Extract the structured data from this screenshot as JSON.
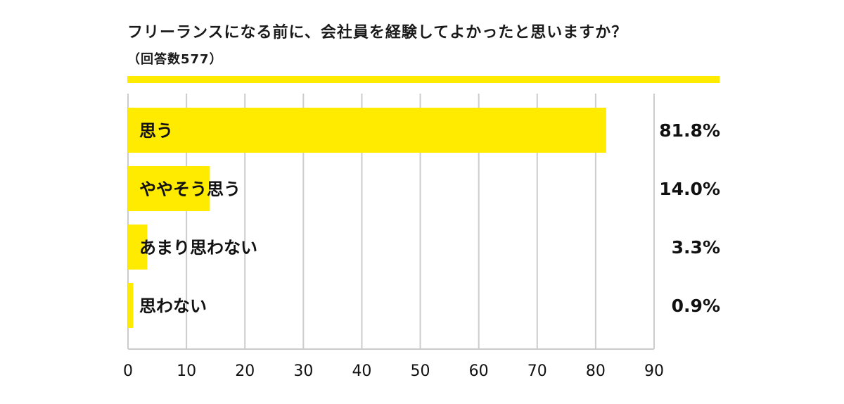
{
  "chart_data": {
    "type": "bar",
    "orientation": "horizontal",
    "title": "フリーランスになる前に、会社員を経験してよかったと思いますか？",
    "subtitle": "（回答数577）",
    "categories": [
      "思う",
      "ややそう思う",
      "あまり思わない",
      "思わない"
    ],
    "values": [
      81.8,
      14.0,
      3.3,
      0.9
    ],
    "value_labels": [
      "81.8%",
      "14.0%",
      "3.3%",
      "0.9%"
    ],
    "xlim": [
      0,
      90
    ],
    "xticks": [
      "0",
      "10",
      "20",
      "30",
      "40",
      "50",
      "60",
      "70",
      "80",
      "90"
    ],
    "grid": true,
    "bar_color": "#ffeb00",
    "accent_color": "#ffeb00",
    "grid_color": "#cccccc"
  }
}
